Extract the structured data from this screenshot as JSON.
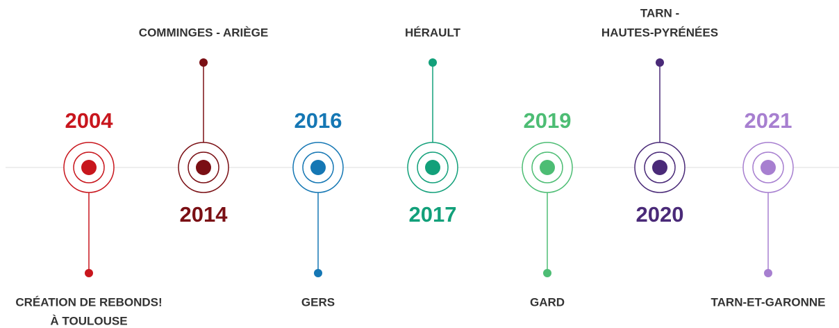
{
  "events": [
    {
      "year": "2004",
      "label": [
        "CRÉATION DE REBONDS!",
        "À TOULOUSE"
      ],
      "color": "#c8161d"
    },
    {
      "year": "2014",
      "label": [
        "COMMINGES - ARIÈGE"
      ],
      "color": "#7a0f14"
    },
    {
      "year": "2016",
      "label": [
        "GERS"
      ],
      "color": "#1577b4"
    },
    {
      "year": "2017",
      "label": [
        "HÉRAULT"
      ],
      "color": "#12a07a"
    },
    {
      "year": "2019",
      "label": [
        "GARD"
      ],
      "color": "#4dbd74"
    },
    {
      "year": "2020",
      "label": [
        "TARN -",
        "HAUTES-PYRÉNÉES"
      ],
      "color": "#4a2a78"
    },
    {
      "year": "2021",
      "label": [
        "TARN-ET-GARONNE"
      ],
      "color": "#a77fd0"
    }
  ]
}
